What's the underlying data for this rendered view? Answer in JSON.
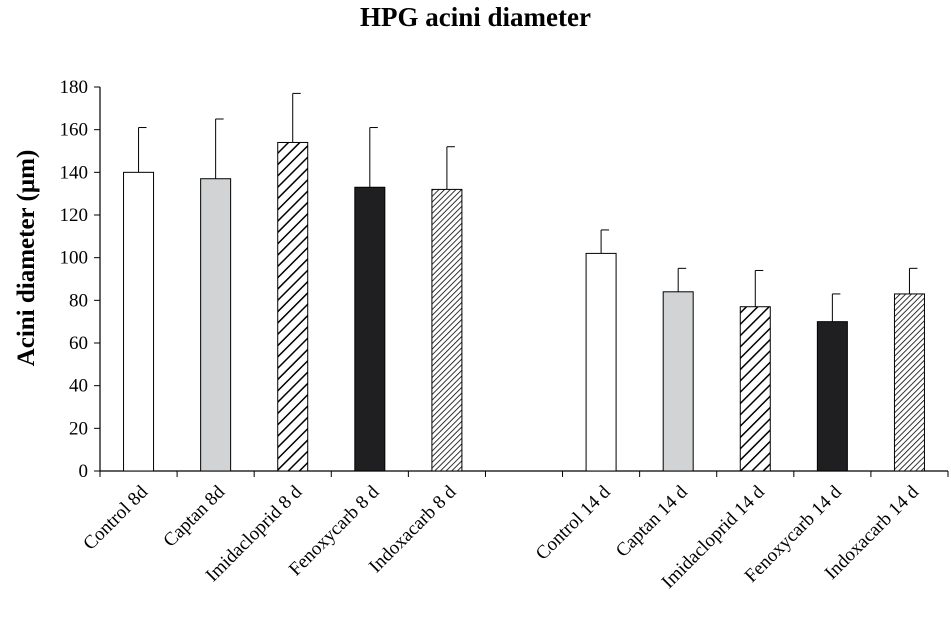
{
  "chart_data": {
    "type": "bar",
    "title": "HPG acini diameter",
    "xlabel": "",
    "ylabel": "Acini diameter (µm)",
    "ylim": [
      0,
      180
    ],
    "yticks": [
      0,
      20,
      40,
      60,
      80,
      100,
      120,
      140,
      160,
      180
    ],
    "grid": false,
    "legend": "none",
    "categories": [
      "Control 8d",
      "Captan 8d",
      "Imidacloprid 8 d",
      "Fenoxycarb 8 d",
      "Indoxacarb 8 d",
      "",
      "Control 14 d",
      "Captan 14 d",
      "Imidacloprid 14 d",
      "Fenoxycarb 14 d",
      "Indoxacarb 14 d"
    ],
    "values": [
      140,
      137,
      154,
      133,
      132,
      null,
      102,
      84,
      77,
      70,
      83
    ],
    "error_upper": [
      161,
      165,
      177,
      161,
      152,
      null,
      113,
      95,
      94,
      83,
      95
    ],
    "fills": [
      "white",
      "light-gray",
      "hatch-sparse",
      "black",
      "hatch-dense",
      null,
      "white",
      "light-gray",
      "hatch-sparse",
      "black",
      "hatch-dense"
    ],
    "colors": {
      "light_gray": "#d1d3d5",
      "black": "#1f1f22",
      "axis": "#000000"
    }
  }
}
